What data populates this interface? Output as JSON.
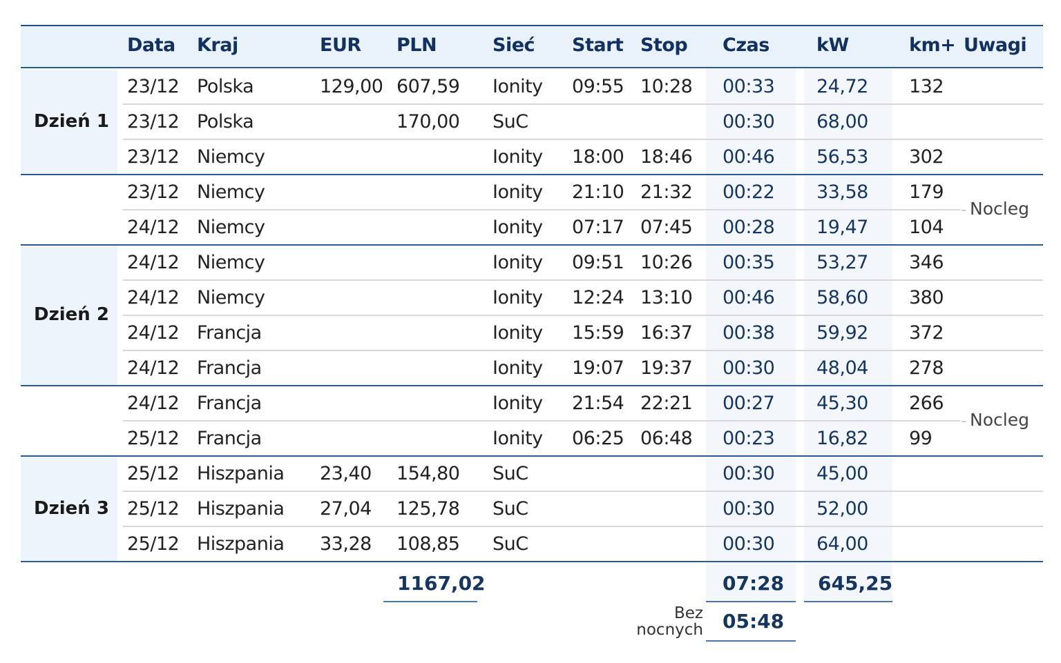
{
  "headers": {
    "data": "Data",
    "kraj": "Kraj",
    "eur": "EUR",
    "pln": "PLN",
    "siec": "Sieć",
    "start": "Start",
    "stop": "Stop",
    "czas": "Czas",
    "kw": "kW",
    "km": "km+",
    "uwagi": "Uwagi"
  },
  "groups": [
    {
      "label": "Dzień 1",
      "rows": [
        0,
        1,
        2
      ],
      "note": ""
    },
    {
      "label": "",
      "rows": [
        3,
        4
      ],
      "note": "Nocleg"
    },
    {
      "label": "Dzień 2",
      "rows": [
        5,
        6,
        7,
        8
      ],
      "note": ""
    },
    {
      "label": "",
      "rows": [
        9,
        10
      ],
      "note": "Nocleg"
    },
    {
      "label": "Dzień 3",
      "rows": [
        11,
        12,
        13
      ],
      "note": ""
    }
  ],
  "rows": [
    {
      "data": "23/12",
      "kraj": "Polska",
      "eur": "129,00",
      "pln": "607,59",
      "siec": "Ionity",
      "start": "09:55",
      "stop": "10:28",
      "czas": "00:33",
      "kw": "24,72",
      "km": "132"
    },
    {
      "data": "23/12",
      "kraj": "Polska",
      "eur": "",
      "pln": "170,00",
      "siec": "SuC",
      "start": "",
      "stop": "",
      "czas": "00:30",
      "kw": "68,00",
      "km": ""
    },
    {
      "data": "23/12",
      "kraj": "Niemcy",
      "eur": "",
      "pln": "",
      "siec": "Ionity",
      "start": "18:00",
      "stop": "18:46",
      "czas": "00:46",
      "kw": "56,53",
      "km": "302"
    },
    {
      "data": "23/12",
      "kraj": "Niemcy",
      "eur": "",
      "pln": "",
      "siec": "Ionity",
      "start": "21:10",
      "stop": "21:32",
      "czas": "00:22",
      "kw": "33,58",
      "km": "179"
    },
    {
      "data": "24/12",
      "kraj": "Niemcy",
      "eur": "",
      "pln": "",
      "siec": "Ionity",
      "start": "07:17",
      "stop": "07:45",
      "czas": "00:28",
      "kw": "19,47",
      "km": "104"
    },
    {
      "data": "24/12",
      "kraj": "Niemcy",
      "eur": "",
      "pln": "",
      "siec": "Ionity",
      "start": "09:51",
      "stop": "10:26",
      "czas": "00:35",
      "kw": "53,27",
      "km": "346"
    },
    {
      "data": "24/12",
      "kraj": "Niemcy",
      "eur": "",
      "pln": "",
      "siec": "Ionity",
      "start": "12:24",
      "stop": "13:10",
      "czas": "00:46",
      "kw": "58,60",
      "km": "380"
    },
    {
      "data": "24/12",
      "kraj": "Francja",
      "eur": "",
      "pln": "",
      "siec": "Ionity",
      "start": "15:59",
      "stop": "16:37",
      "czas": "00:38",
      "kw": "59,92",
      "km": "372"
    },
    {
      "data": "24/12",
      "kraj": "Francja",
      "eur": "",
      "pln": "",
      "siec": "Ionity",
      "start": "19:07",
      "stop": "19:37",
      "czas": "00:30",
      "kw": "48,04",
      "km": "278"
    },
    {
      "data": "24/12",
      "kraj": "Francja",
      "eur": "",
      "pln": "",
      "siec": "Ionity",
      "start": "21:54",
      "stop": "22:21",
      "czas": "00:27",
      "kw": "45,30",
      "km": "266"
    },
    {
      "data": "25/12",
      "kraj": "Francja",
      "eur": "",
      "pln": "",
      "siec": "Ionity",
      "start": "06:25",
      "stop": "06:48",
      "czas": "00:23",
      "kw": "16,82",
      "km": "99"
    },
    {
      "data": "25/12",
      "kraj": "Hiszpania",
      "eur": "23,40",
      "pln": "154,80",
      "siec": "SuC",
      "start": "",
      "stop": "",
      "czas": "00:30",
      "kw": "45,00",
      "km": ""
    },
    {
      "data": "25/12",
      "kraj": "Hiszpania",
      "eur": "27,04",
      "pln": "125,78",
      "siec": "SuC",
      "start": "",
      "stop": "",
      "czas": "00:30",
      "kw": "52,00",
      "km": ""
    },
    {
      "data": "25/12",
      "kraj": "Hiszpania",
      "eur": "33,28",
      "pln": "108,85",
      "siec": "SuC",
      "start": "",
      "stop": "",
      "czas": "00:30",
      "kw": "64,00",
      "km": ""
    }
  ],
  "totals": {
    "pln": "1167,02",
    "czas": "07:28",
    "kw": "645,25",
    "bez_label_1": "Bez",
    "bez_label_2": "nocnych",
    "bez_czas": "05:48"
  },
  "colors": {
    "header_bg": "#e9f2fb",
    "accent": "#2a5a92",
    "text_dark": "#16355f"
  }
}
